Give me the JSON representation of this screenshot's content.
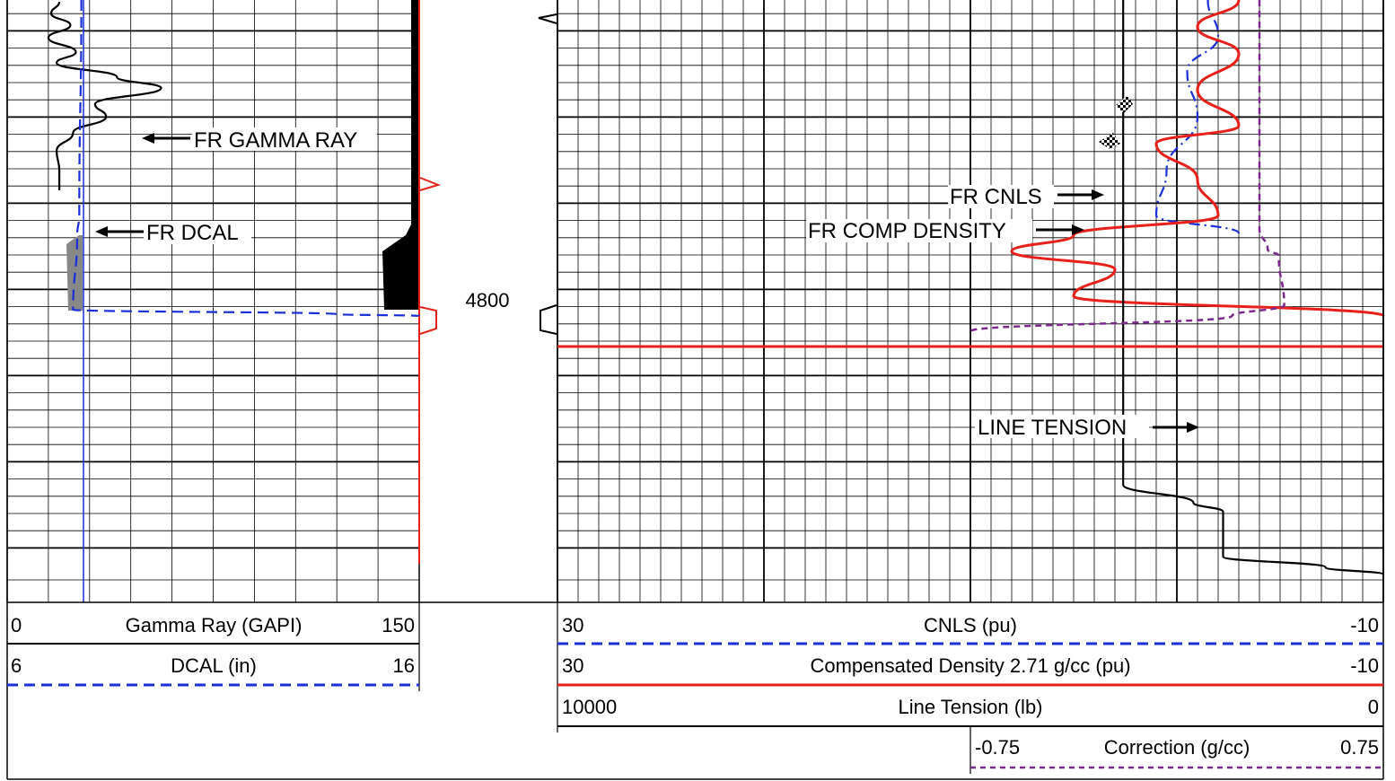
{
  "depth_label": "4800",
  "chart_data": {
    "type": "line",
    "title": "",
    "depth_marker": 4800,
    "tracks": [
      {
        "name": "track-1",
        "scales": [
          {
            "curve": "Gamma Ray (GAPI)",
            "left": "0",
            "right": "150",
            "color": "#000000",
            "style": "solid"
          },
          {
            "curve": "DCAL (in)",
            "left": "6",
            "right": "16",
            "color": "#1a2fd6",
            "style": "dashed"
          }
        ],
        "annotations": [
          "FR GAMMA RAY",
          "FR DCAL"
        ]
      },
      {
        "name": "track-2",
        "scales": [
          {
            "curve": "CNLS (pu)",
            "left": "30",
            "right": "-10",
            "color": "#1a2fd6",
            "style": "dashed"
          },
          {
            "curve": "Compensated Density 2.71 g/cc (pu)",
            "left": "30",
            "right": "-10",
            "color": "#e8201b",
            "style": "solid"
          },
          {
            "curve": "Line Tension (lb)",
            "left": "10000",
            "right": "0",
            "color": "#000000",
            "style": "solid"
          },
          {
            "curve": "Correction (g/cc)",
            "left": "-0.75",
            "right": "0.75",
            "color": "#7b2a8c",
            "style": "dashed"
          }
        ],
        "annotations": [
          "FR CNLS",
          "FR COMP DENSITY",
          "LINE TENSION"
        ]
      }
    ],
    "series": [
      {
        "name": "FR GAMMA RAY",
        "x_unit": "GAPI",
        "points": [
          [
            19,
            2
          ],
          [
            16,
            15
          ],
          [
            23,
            28
          ],
          [
            15,
            42
          ],
          [
            25,
            58
          ],
          [
            18,
            70
          ],
          [
            40,
            86
          ],
          [
            56,
            98
          ],
          [
            32,
            116
          ],
          [
            36,
            130
          ],
          [
            24,
            148
          ],
          [
            18,
            168
          ],
          [
            19,
            190
          ],
          [
            19,
            212
          ]
        ]
      },
      {
        "name": "FR DCAL",
        "x_unit": "in",
        "points": [
          [
            7.8,
            0
          ],
          [
            7.75,
            240
          ],
          [
            7.7,
            262
          ],
          [
            7.6,
            345
          ],
          [
            14,
            350
          ],
          [
            16,
            352
          ]
        ]
      },
      {
        "name": "FR CNLS",
        "x_unit": "pu",
        "points": [
          [
            -1.5,
            0
          ],
          [
            -2,
            40
          ],
          [
            -0.5,
            80
          ],
          [
            -1,
            130
          ],
          [
            0.5,
            190
          ],
          [
            1,
            240
          ],
          [
            -3,
            260
          ]
        ]
      },
      {
        "name": "FR COMP DENSITY",
        "x_unit": "pu",
        "points": [
          [
            -3,
            0
          ],
          [
            -1,
            30
          ],
          [
            -3,
            60
          ],
          [
            -1,
            100
          ],
          [
            -3,
            140
          ],
          [
            1,
            160
          ],
          [
            -1,
            200
          ],
          [
            -2,
            240
          ],
          [
            5,
            262
          ],
          [
            8,
            280
          ],
          [
            3,
            300
          ],
          [
            5,
            330
          ],
          [
            -10,
            352
          ]
        ]
      },
      {
        "name": "LINE TENSION",
        "x_unit": "lb",
        "points": [
          [
            3150,
            0
          ],
          [
            3150,
            520
          ],
          [
            3150,
            540
          ],
          [
            2300,
            560
          ],
          [
            1940,
            570
          ],
          [
            1940,
            620
          ],
          [
            700,
            632
          ],
          [
            0,
            640
          ]
        ]
      },
      {
        "name": "Correction",
        "x_unit": "g/cc",
        "points": [
          [
            0.3,
            0
          ],
          [
            0.3,
            255
          ],
          [
            0.33,
            278
          ],
          [
            0.37,
            285
          ],
          [
            0.39,
            340
          ],
          [
            0.2,
            352
          ],
          [
            -0.75,
            369
          ]
        ]
      }
    ]
  }
}
